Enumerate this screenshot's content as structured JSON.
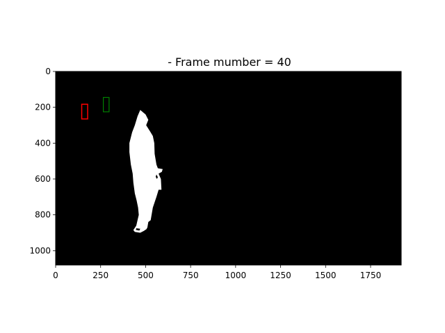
{
  "chart_data": {
    "type": "image",
    "title": "- Frame mumber = 40",
    "xlim": [
      0,
      1920
    ],
    "ylim": [
      1080,
      0
    ],
    "x_ticks": [
      0,
      250,
      500,
      750,
      1000,
      1250,
      1500,
      1750
    ],
    "y_ticks": [
      0,
      200,
      400,
      600,
      800,
      1000
    ],
    "x_tick_labels": [
      "0",
      "250",
      "500",
      "750",
      "1000",
      "1250",
      "1500",
      "1750"
    ],
    "y_tick_labels": [
      "0",
      "200",
      "400",
      "600",
      "800",
      "1000"
    ],
    "background_color": "#000000",
    "mask_color": "#ffffff",
    "boxes": [
      {
        "name": "red-box",
        "color": "#ff0000",
        "x0": 145,
        "y0": 183,
        "x1": 178,
        "y1": 265
      },
      {
        "name": "green-box",
        "color": "#008000",
        "x0": 265,
        "y0": 145,
        "x1": 297,
        "y1": 225
      }
    ],
    "silhouette": {
      "color": "#ffffff",
      "outline": [
        [
          470,
          215
        ],
        [
          500,
          240
        ],
        [
          515,
          270
        ],
        [
          503,
          300
        ],
        [
          525,
          335
        ],
        [
          540,
          360
        ],
        [
          548,
          400
        ],
        [
          550,
          460
        ],
        [
          560,
          520
        ],
        [
          568,
          540
        ],
        [
          595,
          545
        ],
        [
          590,
          560
        ],
        [
          572,
          570
        ],
        [
          585,
          600
        ],
        [
          588,
          660
        ],
        [
          572,
          660
        ],
        [
          560,
          700
        ],
        [
          540,
          760
        ],
        [
          533,
          800
        ],
        [
          528,
          830
        ],
        [
          515,
          840
        ],
        [
          510,
          870
        ],
        [
          505,
          880
        ],
        [
          490,
          890
        ],
        [
          470,
          900
        ],
        [
          440,
          895
        ],
        [
          432,
          885
        ],
        [
          448,
          860
        ],
        [
          455,
          830
        ],
        [
          462,
          800
        ],
        [
          458,
          760
        ],
        [
          450,
          720
        ],
        [
          440,
          680
        ],
        [
          432,
          620
        ],
        [
          428,
          570
        ],
        [
          418,
          520
        ],
        [
          410,
          450
        ],
        [
          410,
          400
        ],
        [
          425,
          340
        ],
        [
          440,
          300
        ],
        [
          455,
          250
        ]
      ],
      "holes": [
        [
          [
            560,
            575
          ],
          [
            568,
            590
          ],
          [
            563,
            600
          ],
          [
            556,
            588
          ]
        ],
        [
          [
            448,
            875
          ],
          [
            470,
            878
          ],
          [
            465,
            888
          ],
          [
            446,
            884
          ]
        ]
      ]
    }
  }
}
